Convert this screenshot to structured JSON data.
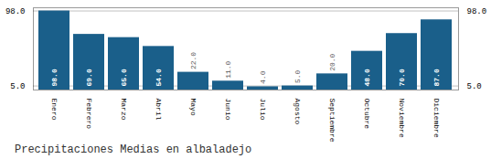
{
  "chart_data": {
    "type": "bar",
    "title": "Precipitaciones Medias en albaladejo",
    "categories": [
      "Enero",
      "Febrero",
      "Marzo",
      "Abril",
      "Mayo",
      "Junio",
      "Julio",
      "Agosto",
      "Septiembre",
      "Octubre",
      "Noviembre",
      "Diciembre"
    ],
    "values": [
      98.0,
      69.0,
      65.0,
      54.0,
      22.0,
      11.0,
      4.0,
      5.0,
      20.0,
      48.0,
      70.0,
      87.0
    ],
    "value_labels": [
      "98.0",
      "69.0",
      "65.0",
      "54.0",
      "22.0",
      "11.0",
      "4.0",
      "5.0",
      "20.0",
      "48.0",
      "70.0",
      "87.0"
    ],
    "color": "#1a5f8a",
    "ylim": [
      0,
      102
    ],
    "yticks": [
      {
        "value": 5,
        "label": "5.0"
      },
      {
        "value": 98,
        "label": "98.0"
      }
    ],
    "y2lim": [
      0,
      102
    ],
    "y2ticks": [
      {
        "value": 5,
        "label": "5.0"
      },
      {
        "value": 98,
        "label": "98.0"
      }
    ],
    "grid": true,
    "data_labels": true
  }
}
